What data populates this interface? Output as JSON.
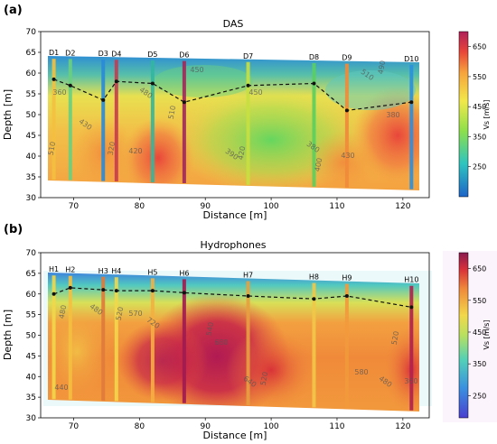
{
  "figure": {
    "panels": [
      {
        "id": "das",
        "panel_label": "(a)",
        "title": "DAS",
        "xlabel": "Distance [m]",
        "ylabel": "Depth [m]",
        "colorbar_label": "Vs [m/s]",
        "colorbar_ticks": [
          "650",
          "550",
          "450",
          "350",
          "250"
        ],
        "colorbar_values": [
          650,
          550,
          450,
          350,
          250
        ],
        "colorbar_range": [
          150,
          700
        ],
        "xticks": [
          "70",
          "80",
          "90",
          "100",
          "110",
          "120"
        ],
        "yticks": [
          "70",
          "65",
          "60",
          "55",
          "50",
          "45",
          "40",
          "35",
          "30"
        ],
        "wells": [
          {
            "name": "D1",
            "x": 67
          },
          {
            "name": "D2",
            "x": 69.5
          },
          {
            "name": "D3",
            "x": 74.5
          },
          {
            "name": "D4",
            "x": 76.5
          },
          {
            "name": "D5",
            "x": 82
          },
          {
            "name": "D6",
            "x": 86.8
          },
          {
            "name": "D7",
            "x": 96.5
          },
          {
            "name": "D8",
            "x": 106.5
          },
          {
            "name": "D9",
            "x": 111.5
          },
          {
            "name": "D10",
            "x": 121.3
          }
        ],
        "contour_labels": [
          "510",
          "360",
          "430",
          "320",
          "420",
          "480",
          "510",
          "450",
          "390",
          "420",
          "450",
          "380",
          "400",
          "430",
          "510",
          "490",
          "380"
        ]
      },
      {
        "id": "hydro",
        "panel_label": "(b)",
        "title": "Hydrophones",
        "xlabel": "Distance [m]",
        "ylabel": "Depth [m]",
        "colorbar_label": "Vs [m/s]",
        "colorbar_ticks": [
          "650",
          "550",
          "450",
          "350",
          "250"
        ],
        "colorbar_values": [
          650,
          550,
          450,
          350,
          250
        ],
        "colorbar_range": [
          180,
          700
        ],
        "xticks": [
          "70",
          "80",
          "90",
          "100",
          "110",
          "120"
        ],
        "yticks": [
          "70",
          "65",
          "60",
          "55",
          "50",
          "45",
          "40",
          "35",
          "30"
        ],
        "wells": [
          {
            "name": "H1",
            "x": 67
          },
          {
            "name": "H2",
            "x": 69.5
          },
          {
            "name": "H3",
            "x": 74.5
          },
          {
            "name": "H4",
            "x": 76.5
          },
          {
            "name": "H5",
            "x": 82
          },
          {
            "name": "H6",
            "x": 86.8
          },
          {
            "name": "H7",
            "x": 96.5
          },
          {
            "name": "H8",
            "x": 106.5
          },
          {
            "name": "H9",
            "x": 111.5
          },
          {
            "name": "H10",
            "x": 121.3
          }
        ],
        "contour_labels": [
          "480",
          "440",
          "480",
          "520",
          "570",
          "720",
          "540",
          "680",
          "640",
          "520",
          "580",
          "480",
          "520",
          "360"
        ]
      }
    ]
  },
  "chart_data": [
    {
      "type": "heatmap",
      "title": "DAS",
      "xlabel": "Distance [m]",
      "ylabel": "Depth [m]",
      "xlim": [
        65,
        124
      ],
      "ylim": [
        30,
        70
      ],
      "colorbar_label": "Vs [m/s]",
      "well_names": [
        "D1",
        "D2",
        "D3",
        "D4",
        "D5",
        "D6",
        "D7",
        "D8",
        "D9",
        "D10"
      ],
      "well_x": [
        67,
        69.5,
        74.5,
        76.5,
        82,
        86.8,
        96.5,
        106.5,
        111.5,
        121.3
      ],
      "interface_depth": [
        58.5,
        57,
        53.5,
        58,
        57.5,
        53,
        57,
        57.5,
        51,
        53
      ]
    },
    {
      "type": "heatmap",
      "title": "Hydrophones",
      "xlabel": "Distance [m]",
      "ylabel": "Depth [m]",
      "xlim": [
        65,
        124
      ],
      "ylim": [
        30,
        70
      ],
      "colorbar_label": "Vs [m/s]",
      "well_names": [
        "H1",
        "H2",
        "H3",
        "H4",
        "H5",
        "H6",
        "H7",
        "H8",
        "H9",
        "H10"
      ],
      "well_x": [
        67,
        69.5,
        74.5,
        76.5,
        82,
        86.8,
        96.5,
        106.5,
        111.5,
        121.3
      ],
      "interface_depth": [
        60,
        61.5,
        61,
        60.8,
        60.8,
        60.3,
        59.5,
        58.8,
        59.5,
        56.8
      ]
    }
  ]
}
